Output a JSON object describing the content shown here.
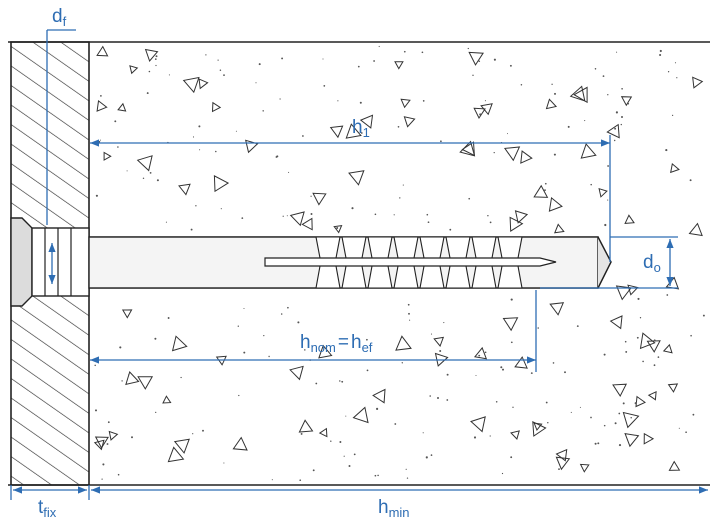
{
  "colors": {
    "dimension": "#2e6db3",
    "outline": "#222222",
    "anchor_fill": "#e9e9e9",
    "background": "#ffffff"
  },
  "labels": {
    "d_f": {
      "main": "d",
      "sub": "f"
    },
    "h_1": {
      "main": "h",
      "sub": "1"
    },
    "d_o": {
      "main": "d",
      "sub": "o"
    },
    "h_nom": {
      "main": "h",
      "sub": "nom"
    },
    "equals": "=",
    "h_ef": {
      "main": "h",
      "sub": "ef"
    },
    "t_fix": {
      "main": "t",
      "sub": "fix"
    },
    "h_min": {
      "main": "h",
      "sub": "min"
    }
  }
}
